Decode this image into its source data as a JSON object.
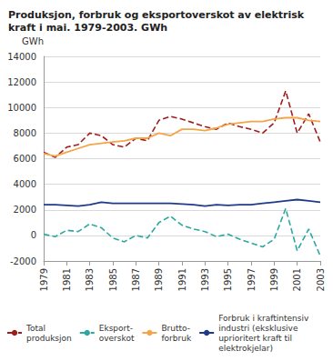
{
  "chart_data": {
    "type": "line",
    "title": "Produksjon, forbruk og eksportoverskot av elektrisk\nkraft i mai. 1979-2003. GWh",
    "y_label": "GWh",
    "x": [
      1979,
      1980,
      1981,
      1982,
      1983,
      1984,
      1985,
      1986,
      1987,
      1988,
      1989,
      1990,
      1991,
      1992,
      1993,
      1994,
      1995,
      1996,
      1997,
      1998,
      1999,
      2000,
      2001,
      2002,
      2003
    ],
    "series": [
      {
        "name": "Total\nproduksjon",
        "color": "#a01c1c",
        "line_style": "dashed",
        "values": [
          6500,
          6100,
          6900,
          7100,
          8000,
          7800,
          7100,
          6900,
          7600,
          7400,
          9000,
          9300,
          9100,
          8800,
          8500,
          8300,
          8800,
          8500,
          8300,
          8000,
          8800,
          11300,
          8000,
          9500,
          7300
        ]
      },
      {
        "name": "Eksport-\noverskot",
        "color": "#2ba8a0",
        "line_style": "dashed",
        "values": [
          100,
          -100,
          400,
          300,
          900,
          600,
          -200,
          -500,
          0,
          -200,
          1000,
          1500,
          800,
          500,
          300,
          -100,
          100,
          -300,
          -600,
          -900,
          -300,
          2100,
          -1200,
          500,
          -1600
        ]
      },
      {
        "name": "Brutto-\nforbruk",
        "color": "#f5a447",
        "line_style": "solid",
        "values": [
          6400,
          6200,
          6500,
          6800,
          7100,
          7200,
          7300,
          7400,
          7600,
          7600,
          8000,
          7800,
          8300,
          8300,
          8200,
          8400,
          8700,
          8800,
          8900,
          8900,
          9100,
          9200,
          9200,
          9000,
          8900
        ]
      },
      {
        "name": "Forbruk i kraftintensiv\nindustri (eksklusive\nuprioritert kraft til\nelektrokjelar)",
        "color": "#1f3a8a",
        "line_style": "solid",
        "values": [
          2400,
          2400,
          2350,
          2300,
          2400,
          2600,
          2500,
          2500,
          2500,
          2500,
          2500,
          2500,
          2450,
          2400,
          2300,
          2400,
          2350,
          2400,
          2400,
          2500,
          2600,
          2700,
          2800,
          2700,
          2600
        ]
      }
    ],
    "xlim": [
      1979,
      2003
    ],
    "xticks": [
      1979,
      1981,
      1983,
      1985,
      1987,
      1989,
      1991,
      1993,
      1995,
      1997,
      1999,
      2001,
      2003
    ],
    "ylim": [
      -2000,
      14000
    ],
    "yticks": [
      -2000,
      0,
      2000,
      4000,
      6000,
      8000,
      10000,
      12000,
      14000
    ],
    "grid": true,
    "legend": "bottom"
  }
}
